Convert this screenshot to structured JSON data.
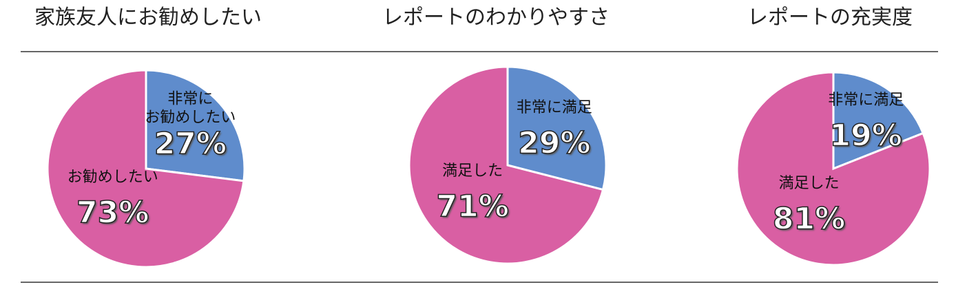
{
  "chart_data": [
    {
      "type": "pie",
      "title": "家族友人にお勧めしたい",
      "categories": [
        "非常に\nお勧めしたい",
        "お勧めしたい"
      ],
      "values": [
        27,
        73
      ],
      "value_labels": [
        "27%",
        "73%"
      ],
      "colors": [
        "#5f8ccc",
        "#d95fa3"
      ]
    },
    {
      "type": "pie",
      "title": "レポートのわかりやすさ",
      "categories": [
        "非常に満足",
        "満足した"
      ],
      "values": [
        29,
        71
      ],
      "value_labels": [
        "29%",
        "71%"
      ],
      "colors": [
        "#5f8ccc",
        "#d95fa3"
      ]
    },
    {
      "type": "pie",
      "title": "レポートの充実度",
      "categories": [
        "非常に満足",
        "満足した"
      ],
      "values": [
        19,
        81
      ],
      "value_labels": [
        "19%",
        "81%"
      ],
      "colors": [
        "#5f8ccc",
        "#d95fa3"
      ]
    }
  ]
}
